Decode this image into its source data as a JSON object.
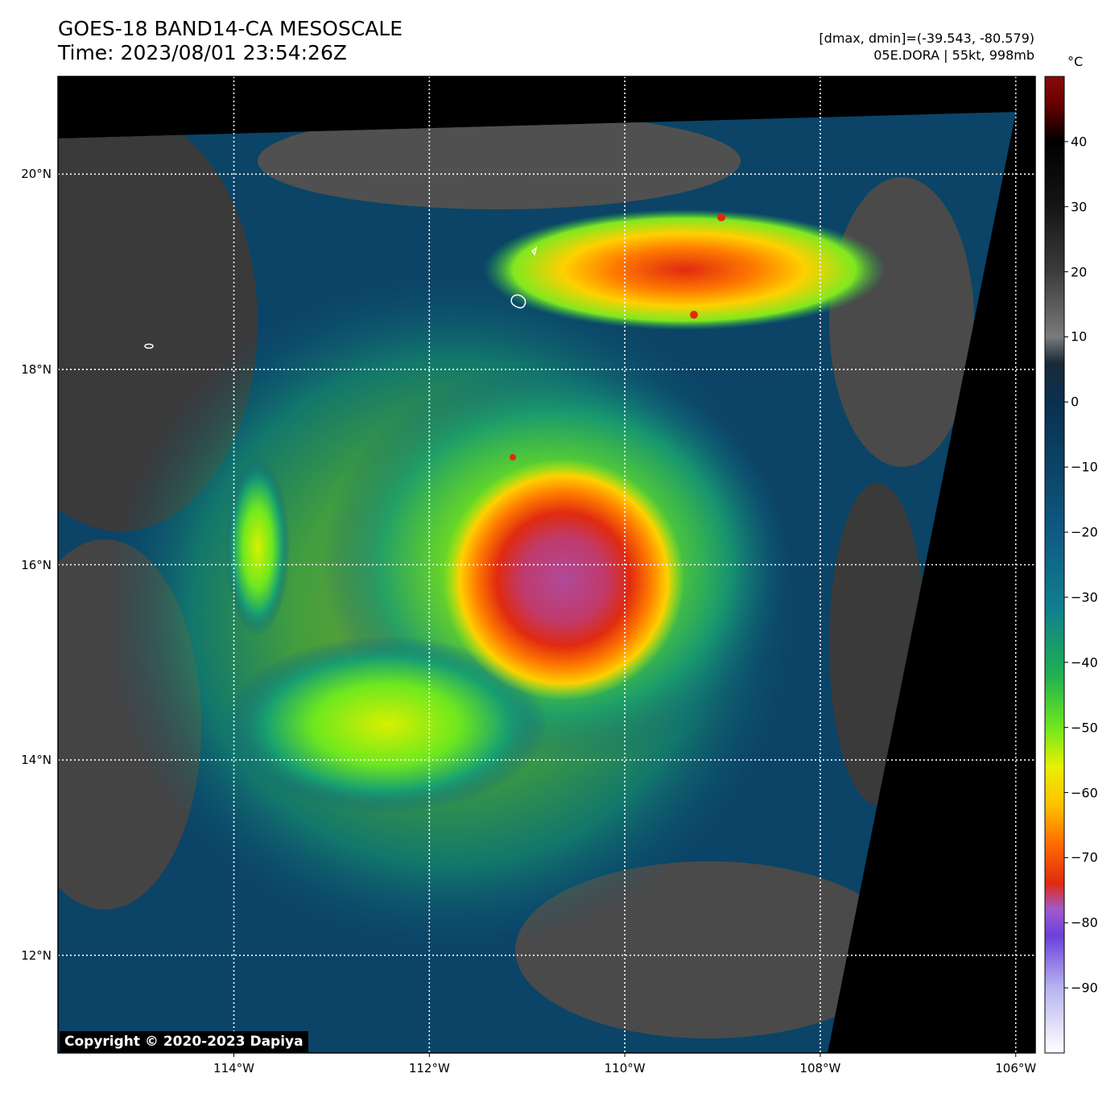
{
  "header": {
    "title": "GOES-18 BAND14-CA MESOSCALE",
    "time": "Time: 2023/08/01 23:54:26Z",
    "range": "[dmax, dmin]=(-39.543, -80.579)",
    "storm": "05E.DORA | 55kt, 998mb"
  },
  "map": {
    "lon_range": [
      -115.8,
      -105.8
    ],
    "lat_range": [
      11.0,
      21.0
    ],
    "lon_ticks": [
      {
        "value": -114,
        "label": "114°W"
      },
      {
        "value": -112,
        "label": "112°W"
      },
      {
        "value": -110,
        "label": "110°W"
      },
      {
        "value": -108,
        "label": "108°W"
      },
      {
        "value": -106,
        "label": "106°W"
      }
    ],
    "lat_ticks": [
      {
        "value": 20,
        "label": "20°N"
      },
      {
        "value": 18,
        "label": "18°N"
      },
      {
        "value": 16,
        "label": "16°N"
      },
      {
        "value": 14,
        "label": "14°N"
      },
      {
        "value": 12,
        "label": "12°N"
      }
    ],
    "grid": "dotted white",
    "storm_center": {
      "lon": -110.6,
      "lat": 15.8
    }
  },
  "colorbar": {
    "unit": "°C",
    "range": [
      -100,
      50
    ],
    "ticks": [
      {
        "value": 40,
        "label": "40"
      },
      {
        "value": 30,
        "label": "30"
      },
      {
        "value": 20,
        "label": "20"
      },
      {
        "value": 10,
        "label": "10"
      },
      {
        "value": 0,
        "label": "0"
      },
      {
        "value": -10,
        "label": "−10"
      },
      {
        "value": -20,
        "label": "−20"
      },
      {
        "value": -30,
        "label": "−30"
      },
      {
        "value": -40,
        "label": "−40"
      },
      {
        "value": -50,
        "label": "−50"
      },
      {
        "value": -60,
        "label": "−60"
      },
      {
        "value": -70,
        "label": "−70"
      },
      {
        "value": -80,
        "label": "−80"
      },
      {
        "value": -90,
        "label": "−90"
      }
    ],
    "stops": [
      {
        "value": -100,
        "color": "#ffffff"
      },
      {
        "value": -90,
        "color": "#b8b4f0"
      },
      {
        "value": -82,
        "color": "#6b40d8"
      },
      {
        "value": -78,
        "color": "#a05ad0"
      },
      {
        "value": -74,
        "color": "#e02a10"
      },
      {
        "value": -68,
        "color": "#ff6a00"
      },
      {
        "value": -62,
        "color": "#ffc000"
      },
      {
        "value": -56,
        "color": "#e8f000"
      },
      {
        "value": -50,
        "color": "#6ee81e"
      },
      {
        "value": -42,
        "color": "#20b050"
      },
      {
        "value": -32,
        "color": "#10808e"
      },
      {
        "value": -20,
        "color": "#0e5a84"
      },
      {
        "value": -10,
        "color": "#0b4466"
      },
      {
        "value": 0,
        "color": "#0a3050"
      },
      {
        "value": 6,
        "color": "#1a2a38"
      },
      {
        "value": 10,
        "color": "#7a7a7a"
      },
      {
        "value": 20,
        "color": "#3c3c3c"
      },
      {
        "value": 30,
        "color": "#151515"
      },
      {
        "value": 40,
        "color": "#000000"
      },
      {
        "value": 46,
        "color": "#6a0000"
      },
      {
        "value": 50,
        "color": "#8a0a0a"
      }
    ]
  },
  "copyright": "Copyright © 2020-2023 Dapiya"
}
